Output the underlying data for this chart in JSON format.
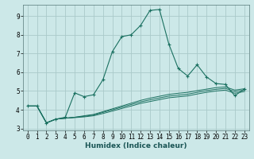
{
  "title": "",
  "xlabel": "Humidex (Indice chaleur)",
  "background_color": "#cce8e8",
  "grid_color": "#aacaca",
  "line_color": "#1a7060",
  "x_values": [
    0,
    1,
    2,
    3,
    4,
    5,
    6,
    7,
    8,
    9,
    10,
    11,
    12,
    13,
    14,
    15,
    16,
    17,
    18,
    19,
    20,
    21,
    22,
    23
  ],
  "main_y": [
    4.2,
    4.2,
    3.3,
    3.5,
    3.6,
    4.9,
    4.7,
    4.8,
    5.6,
    7.1,
    7.9,
    8.0,
    8.5,
    9.3,
    9.35,
    7.5,
    6.2,
    5.8,
    6.4,
    5.75,
    5.4,
    5.35,
    4.75,
    5.1
  ],
  "line2_y": [
    4.2,
    4.2,
    3.3,
    3.5,
    3.55,
    3.6,
    3.68,
    3.75,
    3.9,
    4.05,
    4.2,
    4.35,
    4.5,
    4.62,
    4.72,
    4.82,
    4.88,
    4.93,
    5.02,
    5.1,
    5.18,
    5.22,
    5.05,
    5.12
  ],
  "line3_y": [
    4.2,
    4.2,
    3.3,
    3.5,
    3.55,
    3.6,
    3.65,
    3.72,
    3.86,
    4.0,
    4.14,
    4.28,
    4.42,
    4.53,
    4.63,
    4.73,
    4.78,
    4.83,
    4.93,
    5.02,
    5.09,
    5.14,
    4.97,
    5.05
  ],
  "line4_y": [
    4.2,
    4.2,
    3.3,
    3.5,
    3.55,
    3.58,
    3.62,
    3.68,
    3.8,
    3.93,
    4.07,
    4.2,
    4.34,
    4.44,
    4.54,
    4.64,
    4.69,
    4.74,
    4.84,
    4.93,
    5.0,
    5.05,
    4.88,
    4.97
  ],
  "ylim": [
    2.9,
    9.6
  ],
  "xlim": [
    -0.5,
    23.5
  ],
  "yticks": [
    3,
    4,
    5,
    6,
    7,
    8,
    9
  ],
  "xticks": [
    0,
    1,
    2,
    3,
    4,
    5,
    6,
    7,
    8,
    9,
    10,
    11,
    12,
    13,
    14,
    15,
    16,
    17,
    18,
    19,
    20,
    21,
    22,
    23
  ],
  "xlabel_fontsize": 6.5,
  "tick_fontsize": 5.5,
  "ylabel_fontsize": 6.5
}
